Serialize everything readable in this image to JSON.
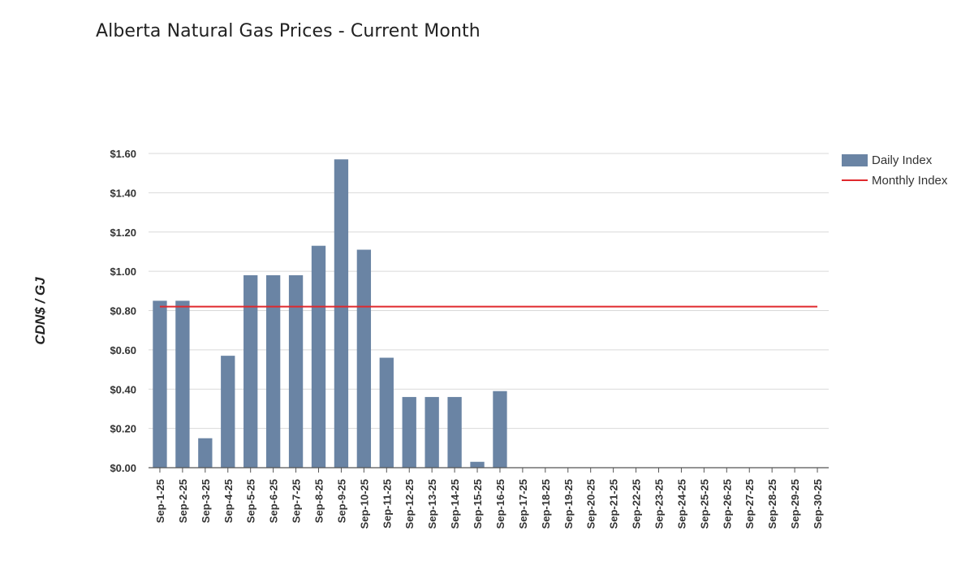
{
  "title": "Alberta Natural Gas Prices - Current Month",
  "colors": {
    "daily": "#6a84a4",
    "monthly": "#e0292d",
    "grid": "#d9d9d9",
    "axis": "#555555"
  },
  "chart_data": {
    "type": "bar",
    "title": "Alberta Natural Gas Prices - Current Month",
    "xlabel": "",
    "ylabel": "CDN$ / GJ",
    "ylim": [
      0,
      1.6
    ],
    "yticks": [
      "$0.00",
      "$0.20",
      "$0.40",
      "$0.60",
      "$0.80",
      "$1.00",
      "$1.20",
      "$1.40",
      "$1.60"
    ],
    "grid": true,
    "legend_position": "top-right",
    "categories": [
      "Sep-1-25",
      "Sep-2-25",
      "Sep-3-25",
      "Sep-4-25",
      "Sep-5-25",
      "Sep-6-25",
      "Sep-7-25",
      "Sep-8-25",
      "Sep-9-25",
      "Sep-10-25",
      "Sep-11-25",
      "Sep-12-25",
      "Sep-13-25",
      "Sep-14-25",
      "Sep-15-25",
      "Sep-16-25",
      "Sep-17-25",
      "Sep-18-25",
      "Sep-19-25",
      "Sep-20-25",
      "Sep-21-25",
      "Sep-22-25",
      "Sep-23-25",
      "Sep-24-25",
      "Sep-25-25",
      "Sep-26-25",
      "Sep-27-25",
      "Sep-28-25",
      "Sep-29-25",
      "Sep-30-25"
    ],
    "series": [
      {
        "name": "Daily Index",
        "type": "bar",
        "values": [
          0.85,
          0.85,
          0.15,
          0.57,
          0.98,
          0.98,
          0.98,
          1.13,
          1.57,
          1.11,
          0.56,
          0.36,
          0.36,
          0.36,
          0.03,
          0.39,
          0,
          0,
          0,
          0,
          0,
          0,
          0,
          0,
          0,
          0,
          0,
          0,
          0,
          0
        ]
      },
      {
        "name": "Monthly Index",
        "type": "line",
        "value": 0.82
      }
    ]
  }
}
